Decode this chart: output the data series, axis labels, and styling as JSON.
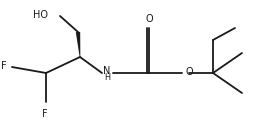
{
  "bg_color": "#ffffff",
  "line_color": "#1a1a1a",
  "line_width": 1.3,
  "font_size": 7.0,
  "figsize": [
    2.54,
    1.38
  ],
  "dpi": 100,
  "xlim": [
    0.0,
    2.54
  ],
  "ylim": [
    0.0,
    1.38
  ]
}
